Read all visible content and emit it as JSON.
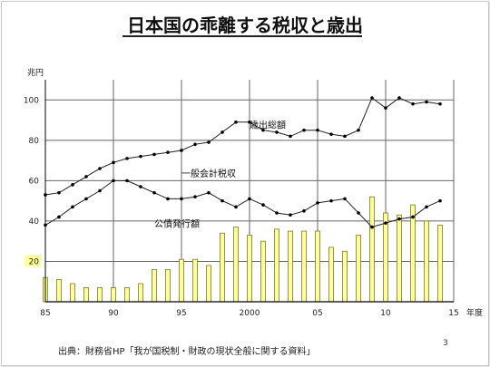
{
  "slide": {
    "source": "出典：財務省HP「我が国税制・財政の現状全般に関する資料」",
    "page_number": "3"
  },
  "chart_data": {
    "type": "bar",
    "title": "日本国の乖離する税収と歳出",
    "ylabel": "兆円",
    "xlabel": "年度",
    "ylim": [
      0,
      110
    ],
    "xlim": [
      1985,
      2015
    ],
    "grid": true,
    "y_ticks": [
      "20",
      "40",
      "60",
      "80",
      "100"
    ],
    "x_ticks": [
      "85",
      "90",
      "95",
      "2000",
      "05",
      "10",
      "15"
    ],
    "annotations": [
      {
        "text": "歳出総額",
        "x": 2000,
        "y": 86
      },
      {
        "text": "一般会計税収",
        "x": 1995,
        "y": 62
      },
      {
        "text": "公債発行額",
        "x": 1993,
        "y": 37
      }
    ],
    "highlight_label": "20",
    "series": [
      {
        "name": "歳出総額",
        "type": "line",
        "x": [
          1985,
          1986,
          1987,
          1988,
          1989,
          1990,
          1991,
          1992,
          1993,
          1994,
          1995,
          1996,
          1997,
          1998,
          1999,
          2000,
          2001,
          2002,
          2003,
          2004,
          2005,
          2006,
          2007,
          2008,
          2009,
          2010,
          2011,
          2012,
          2013,
          2014
        ],
        "values": [
          53,
          54,
          58,
          62,
          66,
          69,
          71,
          72,
          73,
          74,
          75,
          78,
          79,
          84,
          89,
          89,
          85,
          84,
          82,
          85,
          85,
          83,
          82,
          85,
          101,
          96,
          101,
          98,
          99,
          98
        ]
      },
      {
        "name": "一般会計税収",
        "type": "line",
        "x": [
          1985,
          1986,
          1987,
          1988,
          1989,
          1990,
          1991,
          1992,
          1993,
          1994,
          1995,
          1996,
          1997,
          1998,
          1999,
          2000,
          2001,
          2002,
          2003,
          2004,
          2005,
          2006,
          2007,
          2008,
          2009,
          2010,
          2011,
          2012,
          2013,
          2014
        ],
        "values": [
          38,
          42,
          47,
          51,
          55,
          60,
          60,
          57,
          54,
          51,
          51,
          52,
          54,
          50,
          47,
          51,
          48,
          44,
          43,
          45,
          49,
          50,
          51,
          44,
          37,
          39,
          41,
          42,
          47,
          50
        ]
      },
      {
        "name": "公債発行額",
        "type": "bar",
        "x": [
          1985,
          1986,
          1987,
          1988,
          1989,
          1990,
          1991,
          1992,
          1993,
          1994,
          1995,
          1996,
          1997,
          1998,
          1999,
          2000,
          2001,
          2002,
          2003,
          2004,
          2005,
          2006,
          2007,
          2008,
          2009,
          2010,
          2011,
          2012,
          2013,
          2014
        ],
        "values": [
          12,
          11,
          9,
          7,
          7,
          7,
          7,
          9,
          16,
          16,
          21,
          21,
          18,
          34,
          37,
          33,
          30,
          36,
          35,
          35,
          35,
          27,
          25,
          33,
          52,
          44,
          43,
          48,
          40,
          38
        ]
      }
    ]
  }
}
